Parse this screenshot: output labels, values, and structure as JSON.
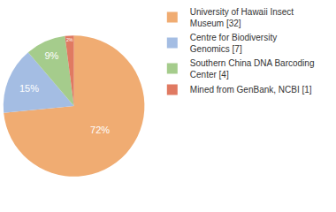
{
  "chart_data": {
    "type": "pie",
    "categories": [
      "University of Hawaii Insect Museum [32]",
      "Centre for Biodiversity Genomics [7]",
      "Southern China DNA Barcoding Center [4]",
      "Mined from GenBank, NCBI [1]"
    ],
    "values": [
      72,
      15,
      9,
      2
    ],
    "value_labels": [
      "72%",
      "15%",
      "9%",
      "2%"
    ],
    "colors": [
      "#f0ac72",
      "#a4bde3",
      "#a5cc8c",
      "#e07a62"
    ],
    "data_labels": true,
    "legend": "upper right"
  }
}
